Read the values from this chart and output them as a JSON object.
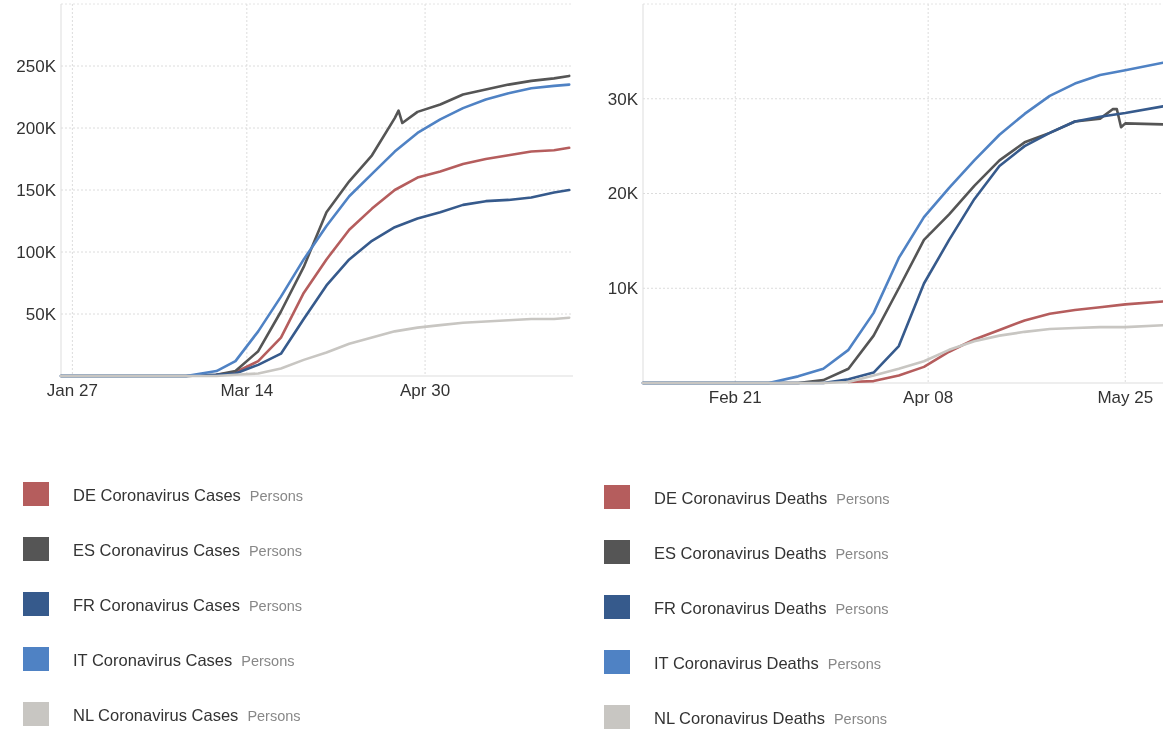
{
  "chart_data": [
    {
      "type": "line",
      "xlim": [
        "--01-24",
        "--06-08"
      ],
      "ylim": [
        0,
        300000
      ],
      "xticks": [
        {
          "value": "--01-27",
          "label": "Jan 27"
        },
        {
          "value": "--03-14",
          "label": "Mar 14"
        },
        {
          "value": "--04-30",
          "label": "Apr 30"
        }
      ],
      "yticks": [
        {
          "value": 50000,
          "label": "50K"
        },
        {
          "value": 100000,
          "label": "100K"
        },
        {
          "value": 150000,
          "label": "150K"
        },
        {
          "value": 200000,
          "label": "200K"
        },
        {
          "value": 250000,
          "label": "250K"
        }
      ],
      "grid": true,
      "legend": "bottom",
      "marker": "none",
      "line_style": "solid",
      "x": [
        "--01-24",
        "--02-15",
        "--02-26",
        "--03-06",
        "--03-11",
        "--03-17",
        "--03-23",
        "--03-29",
        "--04-04",
        "--04-10",
        "--04-16",
        "--04-22",
        "--04-28",
        "--05-04",
        "--05-10",
        "--05-16",
        "--05-22",
        "--05-28",
        "--06-03",
        "--06-07"
      ],
      "series": [
        {
          "name": "DE Coronavirus Cases",
          "color": "#b55d5d",
          "values": [
            null,
            null,
            null,
            1000,
            3000,
            12000,
            31000,
            67000,
            94000,
            118000,
            135000,
            150000,
            160000,
            165000,
            171000,
            175000,
            178000,
            181000,
            182000,
            184000
          ]
        },
        {
          "name": "ES Coronavirus Cases",
          "color": "#555555",
          "x": [
            "--01-24",
            "--02-15",
            "--02-26",
            "--03-06",
            "--03-11",
            "--03-17",
            "--03-23",
            "--03-29",
            "--04-04",
            "--04-10",
            "--04-16",
            "--04-22",
            "--04-23",
            "--04-24",
            "--04-28",
            "--05-04",
            "--05-10",
            "--05-16",
            "--05-22",
            "--05-28",
            "--06-03",
            "--06-07"
          ],
          "values": [
            0,
            0,
            0,
            1000,
            4000,
            20000,
            52000,
            88000,
            132000,
            157000,
            178000,
            208000,
            214000,
            204000,
            213000,
            219000,
            227000,
            231000,
            235000,
            238000,
            240000,
            242000
          ]
        },
        {
          "name": "FR Coronavirus Cases",
          "color": "#365a8c",
          "values": [
            0,
            0,
            0,
            1000,
            2000,
            9000,
            18000,
            46000,
            73000,
            94000,
            109000,
            120000,
            127000,
            132000,
            138000,
            141000,
            142000,
            144000,
            148000,
            150000
          ]
        },
        {
          "name": "IT Coronavirus Cases",
          "color": "#4f82c4",
          "values": [
            0,
            0,
            0,
            4000,
            12000,
            36000,
            64000,
            94000,
            121000,
            145000,
            163000,
            181000,
            196000,
            207000,
            216000,
            223000,
            228000,
            232000,
            234000,
            235000
          ]
        },
        {
          "name": "NL Coronavirus Cases",
          "color": "#c8c6c2",
          "values": [
            0,
            0,
            0,
            0,
            1000,
            2000,
            6000,
            13000,
            19000,
            26000,
            31000,
            36000,
            39000,
            41000,
            43000,
            44000,
            45000,
            46000,
            46000,
            47000
          ]
        }
      ],
      "annotations": [
        "Persons",
        "Persons",
        "Persons",
        "Persons",
        "Persons"
      ]
    },
    {
      "type": "line",
      "xlim": [
        "--01-30",
        "--06-03"
      ],
      "ylim": [
        0,
        40000
      ],
      "xticks": [
        {
          "value": "--02-21",
          "label": "Feb 21"
        },
        {
          "value": "--04-08",
          "label": "Apr 08"
        },
        {
          "value": "--05-25",
          "label": "May 25"
        }
      ],
      "yticks": [
        {
          "value": 10000,
          "label": "10K"
        },
        {
          "value": 20000,
          "label": "20K"
        },
        {
          "value": 30000,
          "label": "30K"
        }
      ],
      "grid": true,
      "legend": "bottom",
      "marker": "none",
      "line_style": "solid",
      "x": [
        "--01-30",
        "--03-01",
        "--03-08",
        "--03-14",
        "--03-20",
        "--03-26",
        "--04-01",
        "--04-07",
        "--04-13",
        "--04-19",
        "--04-25",
        "--05-01",
        "--05-07",
        "--05-13",
        "--05-19",
        "--05-25",
        "--06-03"
      ],
      "series": [
        {
          "name": "DE Coronavirus Deaths",
          "color": "#b55d5d",
          "values": [
            null,
            null,
            null,
            null,
            100,
            200,
            800,
            1700,
            3300,
            4600,
            5600,
            6600,
            7300,
            7700,
            8000,
            8300,
            8600
          ]
        },
        {
          "name": "ES Coronavirus Deaths",
          "color": "#555555",
          "x": [
            "--01-30",
            "--03-01",
            "--03-08",
            "--03-14",
            "--03-20",
            "--03-26",
            "--04-01",
            "--04-07",
            "--04-13",
            "--04-19",
            "--04-25",
            "--05-01",
            "--05-07",
            "--05-13",
            "--05-19",
            "--05-22",
            "--05-23",
            "--05-24",
            "--05-25",
            "--06-03"
          ],
          "values": [
            0,
            0,
            0,
            300,
            1500,
            5000,
            10000,
            15100,
            17800,
            20800,
            23500,
            25400,
            26400,
            27600,
            27900,
            28900,
            28900,
            27000,
            27400,
            27300
          ]
        },
        {
          "name": "FR Coronavirus Deaths",
          "color": "#365a8c",
          "values": [
            0,
            0,
            0,
            0,
            400,
            1100,
            3900,
            10500,
            15100,
            19400,
            22900,
            25000,
            26400,
            27600,
            28100,
            28500,
            29200
          ]
        },
        {
          "name": "IT Coronavirus Deaths",
          "color": "#4f82c4",
          "values": [
            0,
            0,
            700,
            1500,
            3500,
            7400,
            13200,
            17500,
            20600,
            23500,
            26200,
            28400,
            30300,
            31600,
            32500,
            33000,
            33800
          ]
        },
        {
          "name": "NL Coronavirus Deaths",
          "color": "#c8c6c2",
          "values": [
            0,
            0,
            0,
            0,
            100,
            800,
            1500,
            2300,
            3500,
            4400,
            5000,
            5400,
            5700,
            5800,
            5900,
            5900,
            6100
          ]
        }
      ],
      "annotations": [
        "Persons",
        "Persons",
        "Persons",
        "Persons",
        "Persons"
      ]
    }
  ]
}
